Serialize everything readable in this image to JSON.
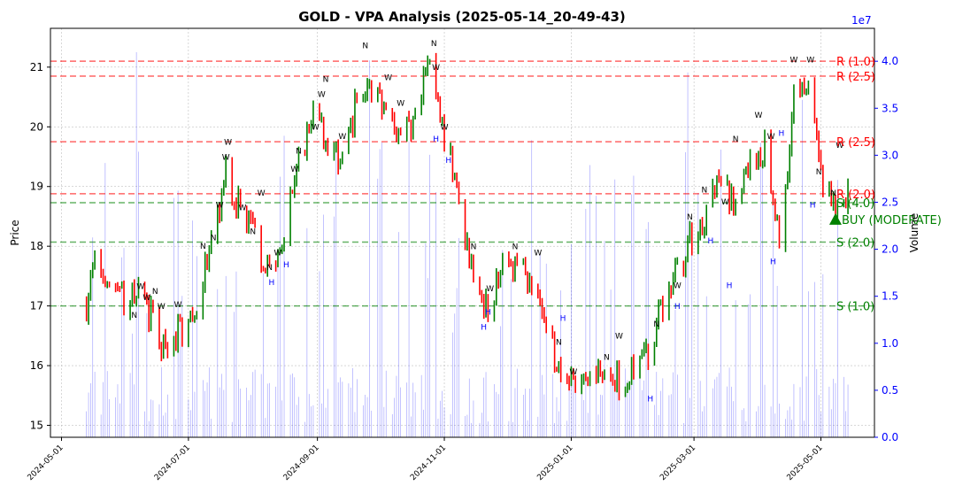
{
  "colors": {
    "up": "#008000",
    "down": "#ff0000",
    "resistance": "#ff0000",
    "support": "#008000",
    "volume": "#0000ff",
    "grid": "#b0b0b0",
    "hvolume": "#0000ff"
  },
  "chart_data": {
    "type": "bar",
    "title": "GOLD - VPA Analysis (2025-05-14_20-49-43)",
    "ylabel": "Price",
    "y2label": "Volume",
    "y2_exponent": "1e7",
    "ylim": [
      14.8,
      21.65
    ],
    "y2lim": [
      0,
      4.35
    ],
    "grid": true,
    "x_ticks": [
      "2024-05-01",
      "2024-07-01",
      "2024-09-01",
      "2024-11-01",
      "2025-01-01",
      "2025-03-01",
      "2025-05-01"
    ],
    "y_ticks": [
      "15",
      "16",
      "17",
      "18",
      "19",
      "20",
      "21"
    ],
    "y2_ticks": [
      "0.0",
      "0.5",
      "1.0",
      "1.5",
      "2.0",
      "2.5",
      "3.0",
      "3.5",
      "4.0"
    ],
    "levels": [
      {
        "label": "R (1.0)",
        "value": 21.1,
        "kind": "resistance"
      },
      {
        "label": "R (2.5)",
        "value": 20.85,
        "kind": "resistance"
      },
      {
        "label": "R (2.5)",
        "value": 19.75,
        "kind": "resistance"
      },
      {
        "label": "R (2.0)",
        "value": 18.88,
        "kind": "resistance"
      },
      {
        "label": "S (4.0)",
        "value": 18.73,
        "kind": "support"
      },
      {
        "label": "S (2.0)",
        "value": 18.07,
        "kind": "support"
      },
      {
        "label": "S (1.0)",
        "value": 17.0,
        "kind": "support"
      }
    ],
    "signal": {
      "label": "BUY (MODERATE)",
      "date": "2025-05-08",
      "price": 18.45
    },
    "anchors": [
      [
        "2024-05-13",
        17.05
      ],
      [
        "2024-05-17",
        17.75
      ],
      [
        "2024-05-23",
        17.45
      ],
      [
        "2024-05-31",
        17.1
      ],
      [
        "2024-06-07",
        17.3
      ],
      [
        "2024-06-14",
        16.7
      ],
      [
        "2024-06-21",
        16.1
      ],
      [
        "2024-06-28",
        16.7
      ],
      [
        "2024-07-05",
        17.1
      ],
      [
        "2024-07-12",
        17.9
      ],
      [
        "2024-07-19",
        19.3
      ],
      [
        "2024-07-26",
        18.6
      ],
      [
        "2024-08-02",
        18.2
      ],
      [
        "2024-08-09",
        17.5
      ],
      [
        "2024-08-16",
        18.3
      ],
      [
        "2024-08-23",
        19.4
      ],
      [
        "2024-08-30",
        20.3
      ],
      [
        "2024-09-06",
        19.7
      ],
      [
        "2024-09-13",
        19.3
      ],
      [
        "2024-09-20",
        20.5
      ],
      [
        "2024-09-27",
        20.7
      ],
      [
        "2024-10-04",
        20.2
      ],
      [
        "2024-10-11",
        19.9
      ],
      [
        "2024-10-18",
        20.1
      ],
      [
        "2024-10-25",
        21.1
      ],
      [
        "2024-11-01",
        19.8
      ],
      [
        "2024-11-08",
        18.8
      ],
      [
        "2024-11-15",
        17.4
      ],
      [
        "2024-11-22",
        17.0
      ],
      [
        "2024-11-29",
        17.6
      ],
      [
        "2024-12-06",
        17.8
      ],
      [
        "2024-12-13",
        17.3
      ],
      [
        "2024-12-20",
        16.6
      ],
      [
        "2024-12-27",
        15.9
      ],
      [
        "2025-01-03",
        15.6
      ],
      [
        "2025-01-10",
        15.7
      ],
      [
        "2025-01-17",
        15.9
      ],
      [
        "2025-01-24",
        15.8
      ],
      [
        "2025-01-31",
        15.9
      ],
      [
        "2025-02-07",
        16.3
      ],
      [
        "2025-02-14",
        17.0
      ],
      [
        "2025-02-21",
        17.6
      ],
      [
        "2025-02-28",
        18.1
      ],
      [
        "2025-03-07",
        18.5
      ],
      [
        "2025-03-14",
        19.1
      ],
      [
        "2025-03-21",
        18.6
      ],
      [
        "2025-03-28",
        19.5
      ],
      [
        "2025-04-04",
        19.6
      ],
      [
        "2025-04-11",
        18.0
      ],
      [
        "2025-04-18",
        20.5
      ],
      [
        "2025-04-25",
        20.8
      ],
      [
        "2025-05-02",
        19.0
      ],
      [
        "2025-05-09",
        18.6
      ],
      [
        "2025-05-14",
        18.9
      ]
    ],
    "annotations": [
      {
        "text": "W",
        "date": "2024-06-08",
        "price": 17.28
      },
      {
        "text": "W",
        "date": "2024-06-11",
        "price": 17.1
      },
      {
        "text": "N",
        "date": "2024-06-15",
        "price": 17.2
      },
      {
        "text": "W",
        "date": "2024-06-18",
        "price": 16.95
      },
      {
        "text": "W",
        "date": "2024-06-26",
        "price": 16.98
      },
      {
        "text": "N",
        "date": "2024-06-05",
        "price": 16.8
      },
      {
        "text": "N",
        "date": "2024-07-08",
        "price": 17.96
      },
      {
        "text": "N",
        "date": "2024-07-13",
        "price": 18.1
      },
      {
        "text": "W",
        "date": "2024-07-16",
        "price": 18.65
      },
      {
        "text": "W",
        "date": "2024-07-19",
        "price": 19.45
      },
      {
        "text": "W",
        "date": "2024-07-20",
        "price": 19.7
      },
      {
        "text": "W",
        "date": "2024-07-27",
        "price": 18.6
      },
      {
        "text": "N",
        "date": "2024-08-01",
        "price": 18.2
      },
      {
        "text": "W",
        "date": "2024-08-05",
        "price": 18.85
      },
      {
        "text": "N",
        "date": "2024-08-09",
        "price": 17.6
      },
      {
        "text": "W",
        "date": "2024-08-13",
        "price": 17.85
      },
      {
        "text": "W",
        "date": "2024-08-21",
        "price": 19.25
      },
      {
        "text": "N",
        "date": "2024-08-23",
        "price": 19.55
      },
      {
        "text": "W",
        "date": "2024-08-31",
        "price": 19.95
      },
      {
        "text": "W",
        "date": "2024-09-03",
        "price": 20.5
      },
      {
        "text": "N",
        "date": "2024-09-05",
        "price": 20.75
      },
      {
        "text": "W",
        "date": "2024-09-13",
        "price": 19.8
      },
      {
        "text": "N",
        "date": "2024-09-24",
        "price": 21.32
      },
      {
        "text": "W",
        "date": "2024-10-05",
        "price": 20.78
      },
      {
        "text": "W",
        "date": "2024-10-11",
        "price": 20.35
      },
      {
        "text": "N",
        "date": "2024-10-27",
        "price": 21.35
      },
      {
        "text": "W",
        "date": "2024-10-28",
        "price": 20.95
      },
      {
        "text": "W",
        "date": "2024-11-01",
        "price": 19.95
      },
      {
        "text": "N",
        "date": "2024-11-15",
        "price": 17.95
      },
      {
        "text": "W",
        "date": "2024-11-23",
        "price": 17.25
      },
      {
        "text": "N",
        "date": "2024-12-05",
        "price": 17.95
      },
      {
        "text": "W",
        "date": "2024-12-16",
        "price": 17.85
      },
      {
        "text": "N",
        "date": "2024-12-26",
        "price": 16.35
      },
      {
        "text": "W",
        "date": "2025-01-02",
        "price": 15.85
      },
      {
        "text": "N",
        "date": "2025-01-18",
        "price": 16.1
      },
      {
        "text": "W",
        "date": "2025-01-24",
        "price": 16.45
      },
      {
        "text": "N",
        "date": "2025-02-11",
        "price": 16.65
      },
      {
        "text": "W",
        "date": "2025-02-21",
        "price": 17.3
      },
      {
        "text": "N",
        "date": "2025-02-27",
        "price": 18.45
      },
      {
        "text": "N",
        "date": "2025-03-06",
        "price": 18.9
      },
      {
        "text": "W",
        "date": "2025-03-16",
        "price": 18.7
      },
      {
        "text": "N",
        "date": "2025-03-21",
        "price": 19.75
      },
      {
        "text": "W",
        "date": "2025-04-01",
        "price": 20.15
      },
      {
        "text": "W",
        "date": "2025-04-07",
        "price": 19.8
      },
      {
        "text": "W",
        "date": "2025-04-18",
        "price": 21.08
      },
      {
        "text": "W",
        "date": "2025-04-26",
        "price": 21.08
      },
      {
        "text": "N",
        "date": "2025-04-30",
        "price": 19.2
      },
      {
        "text": "N",
        "date": "2025-05-07",
        "price": 18.85
      },
      {
        "text": "W",
        "date": "2025-05-10",
        "price": 19.65
      },
      {
        "text": "H",
        "date": "2024-08-10",
        "price": 17.35
      },
      {
        "text": "H",
        "date": "2024-08-17",
        "price": 17.65
      },
      {
        "text": "H",
        "date": "2024-10-28",
        "price": 19.75
      },
      {
        "text": "H",
        "date": "2024-11-03",
        "price": 19.4
      },
      {
        "text": "H",
        "date": "2024-11-20",
        "price": 16.6
      },
      {
        "text": "H",
        "date": "2024-11-22",
        "price": 16.85
      },
      {
        "text": "H",
        "date": "2024-12-28",
        "price": 16.75
      },
      {
        "text": "H",
        "date": "2025-02-08",
        "price": 15.4
      },
      {
        "text": "H",
        "date": "2025-02-21",
        "price": 16.95
      },
      {
        "text": "H",
        "date": "2025-03-09",
        "price": 18.05
      },
      {
        "text": "H",
        "date": "2025-03-18",
        "price": 17.3
      },
      {
        "text": "H",
        "date": "2025-04-08",
        "price": 17.7
      },
      {
        "text": "H",
        "date": "2025-04-12",
        "price": 19.85
      },
      {
        "text": "H",
        "date": "2025-04-27",
        "price": 18.65
      }
    ]
  }
}
